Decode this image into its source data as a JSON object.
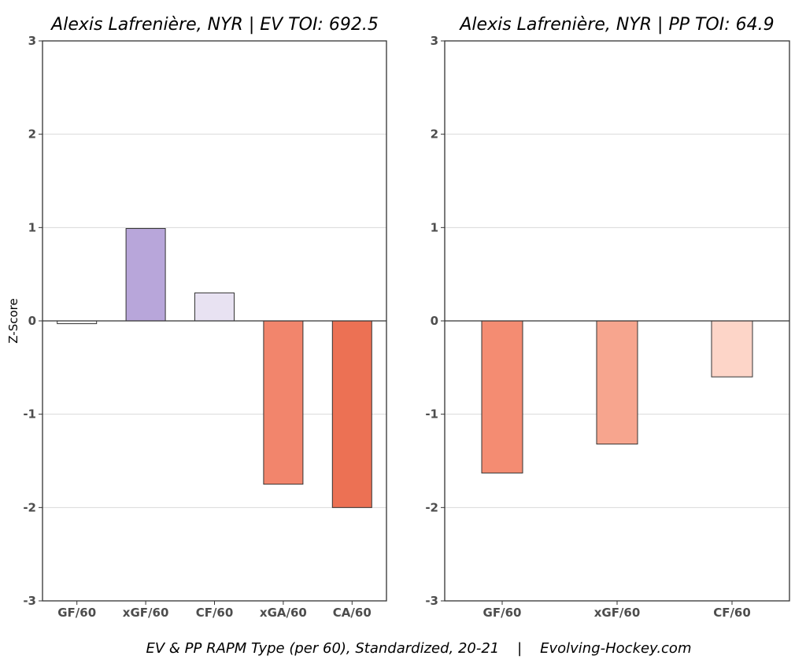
{
  "caption": "EV & PP RAPM Type (per 60), Standardized, 20-21    |    Evolving-Hockey.com",
  "chart_data": [
    {
      "type": "bar",
      "title": "Alexis Lafrenière, NYR  |  EV TOI: 692.5",
      "ylabel": "Z-Score",
      "xlabel": "",
      "ylim": [
        -3,
        3
      ],
      "yticks": [
        "3",
        "2",
        "1",
        "0",
        "-1",
        "-2",
        "-3"
      ],
      "grid": true,
      "categories": [
        "GF/60",
        "xGF/60",
        "CF/60",
        "xGA/60",
        "CA/60"
      ],
      "values": [
        -0.03,
        0.99,
        0.3,
        -1.75,
        -2.0
      ],
      "colors": [
        "#ffffff",
        "#b8a6da",
        "#e8e2f2",
        "#f2856c",
        "#ec7154"
      ]
    },
    {
      "type": "bar",
      "title": "Alexis Lafrenière, NYR  |  PP TOI: 64.9",
      "ylabel": "",
      "xlabel": "",
      "ylim": [
        -3,
        3
      ],
      "yticks": [
        "3",
        "2",
        "1",
        "0",
        "-1",
        "-2",
        "-3"
      ],
      "grid": true,
      "categories": [
        "GF/60",
        "xGF/60",
        "CF/60"
      ],
      "values": [
        -1.63,
        -1.32,
        -0.6
      ],
      "colors": [
        "#f48c72",
        "#f7a58e",
        "#fdd5c8"
      ]
    }
  ]
}
